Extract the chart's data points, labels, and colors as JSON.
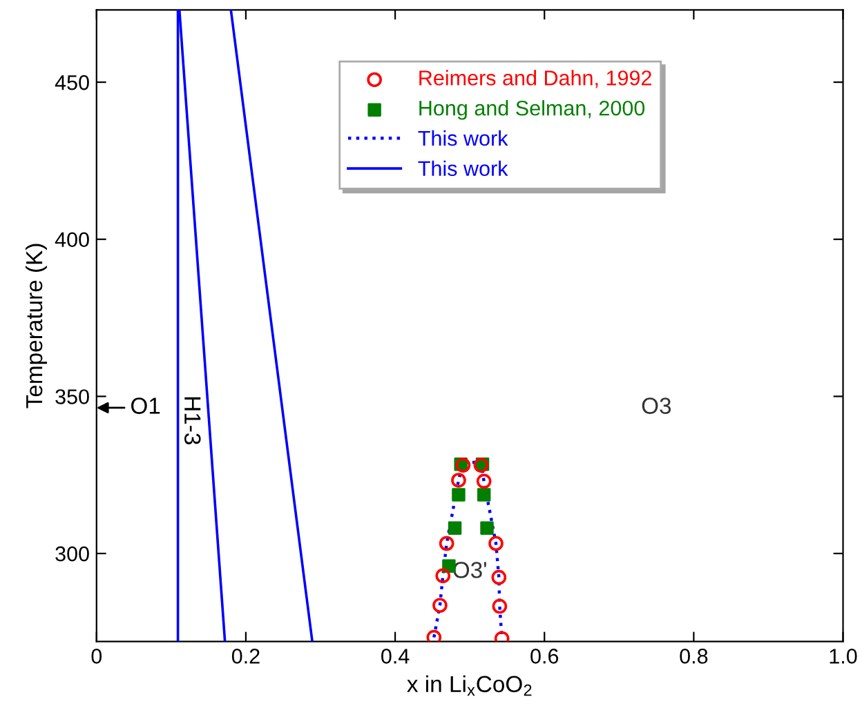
{
  "chart_data": {
    "type": "line",
    "xlabel": "x in Li$_{x}$CoO$_{2}$",
    "ylabel": "Temperature (K)",
    "xlim": [
      0,
      1.0
    ],
    "ylim": [
      272,
      473
    ],
    "xticks": [
      0,
      0.2,
      0.4,
      0.6,
      0.8,
      {
        "value": 1.0,
        "label": "1.0"
      }
    ],
    "yticks": [
      300,
      350,
      400,
      450
    ],
    "grid": false,
    "legend": "top right",
    "series": [
      {
        "name": "Reimers and Dahn, 1992",
        "type": "scatter",
        "marker": "circle",
        "color": "#ff0000",
        "x": [
          0.452,
          0.46,
          0.464,
          0.469,
          0.485,
          0.491,
          0.515,
          0.519,
          0.535,
          0.539,
          0.54,
          0.543
        ],
        "values": [
          273.3,
          283.5,
          292.9,
          303.2,
          323.3,
          328.1,
          328.1,
          323.0,
          303.2,
          292.4,
          283.2,
          272.9
        ]
      },
      {
        "name": "Hong and Selman, 2000",
        "type": "scatter",
        "marker": "square",
        "color": "#007f00",
        "x": [
          0.472,
          0.48,
          0.485,
          0.488,
          0.517,
          0.519,
          0.523
        ],
        "values": [
          296,
          308.1,
          318.7,
          328.4,
          328.4,
          318.7,
          308.1
        ]
      },
      {
        "name": "This work",
        "line_style": "dotted",
        "color": "#0000ff",
        "x": [
          0.452,
          0.46,
          0.464,
          0.469,
          0.485,
          0.491,
          0.515,
          0.519,
          0.535,
          0.539,
          0.54,
          0.543
        ],
        "values": [
          273.3,
          283.5,
          292.9,
          303.2,
          323.3,
          329,
          329,
          323.0,
          303.2,
          292.4,
          283.2,
          272.9
        ]
      },
      {
        "name": "This work",
        "line_style": "solid",
        "color": "#0000ff",
        "x": [
          0.109,
          0.109
        ],
        "values": [
          272,
          473
        ]
      },
      {
        "line_style": "solid",
        "color": "#0000ff",
        "x": [
          0.111,
          0.172
        ],
        "values": [
          473,
          272
        ]
      },
      {
        "line_style": "solid",
        "color": "#0000ff",
        "x": [
          0.18,
          0.289
        ],
        "values": [
          473,
          272
        ]
      }
    ],
    "annotations": [
      "O1",
      "H1-3",
      "O3",
      "O3'"
    ]
  }
}
